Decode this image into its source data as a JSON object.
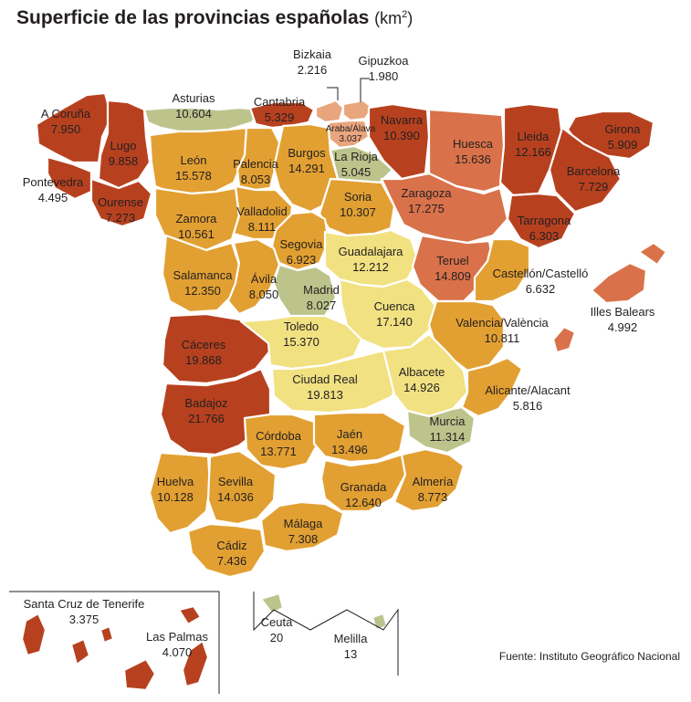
{
  "title": "Superficie de las provincias españolas",
  "unit_base": "(km",
  "unit_exp": "2",
  "unit_close": ")",
  "source": "Fuente: Instituto Geográfico Nacional",
  "colors": {
    "very_high": "#b7411f",
    "high": "#d9724a",
    "medium_high": "#e2a032",
    "peach": "#e9a57e",
    "medium": "#f1e181",
    "green": "#bcc48c"
  },
  "provinces": [
    {
      "id": "a-coruna",
      "name": "A Coruña",
      "value": "7.950",
      "color": "very_high"
    },
    {
      "id": "lugo",
      "name": "Lugo",
      "value": "9.858",
      "color": "very_high"
    },
    {
      "id": "pontevedra",
      "name": "Pontevedra",
      "value": "4.495",
      "color": "very_high"
    },
    {
      "id": "ourense",
      "name": "Ourense",
      "value": "7.273",
      "color": "very_high"
    },
    {
      "id": "asturias",
      "name": "Asturias",
      "value": "10.604",
      "color": "green"
    },
    {
      "id": "cantabria",
      "name": "Cantabria",
      "value": "5.329",
      "color": "very_high"
    },
    {
      "id": "bizkaia",
      "name": "Bizkaia",
      "value": "2.216",
      "color": "peach"
    },
    {
      "id": "gipuzkoa",
      "name": "Gipuzkoa",
      "value": "1.980",
      "color": "peach"
    },
    {
      "id": "araba",
      "name": "Araba/Álava",
      "value": "3.037",
      "color": "peach"
    },
    {
      "id": "navarra",
      "name": "Navarra",
      "value": "10.390",
      "color": "very_high"
    },
    {
      "id": "huesca",
      "name": "Huesca",
      "value": "15.636",
      "color": "high"
    },
    {
      "id": "lleida",
      "name": "Lleida",
      "value": "12.166",
      "color": "very_high"
    },
    {
      "id": "girona",
      "name": "Girona",
      "value": "5.909",
      "color": "very_high"
    },
    {
      "id": "barcelona",
      "name": "Barcelona",
      "value": "7.729",
      "color": "very_high"
    },
    {
      "id": "tarragona",
      "name": "Tarragona",
      "value": "6.303",
      "color": "very_high"
    },
    {
      "id": "leon",
      "name": "León",
      "value": "15.578",
      "color": "medium_high"
    },
    {
      "id": "palencia",
      "name": "Palencia",
      "value": "8.053",
      "color": "medium_high"
    },
    {
      "id": "burgos",
      "name": "Burgos",
      "value": "14.291",
      "color": "medium_high"
    },
    {
      "id": "la-rioja",
      "name": "La Rioja",
      "value": "5.045",
      "color": "green"
    },
    {
      "id": "zaragoza",
      "name": "Zaragoza",
      "value": "17.275",
      "color": "high"
    },
    {
      "id": "soria",
      "name": "Soria",
      "value": "10.307",
      "color": "medium_high"
    },
    {
      "id": "zamora",
      "name": "Zamora",
      "value": "10.561",
      "color": "medium_high"
    },
    {
      "id": "valladolid",
      "name": "Valladolid",
      "value": "8.111",
      "color": "medium_high"
    },
    {
      "id": "segovia",
      "name": "Segovia",
      "value": "6.923",
      "color": "medium_high"
    },
    {
      "id": "guadalajara",
      "name": "Guadalajara",
      "value": "12.212",
      "color": "medium"
    },
    {
      "id": "teruel",
      "name": "Teruel",
      "value": "14.809",
      "color": "high"
    },
    {
      "id": "castellon",
      "name": "Castellón/Castelló",
      "value": "6.632",
      "color": "medium_high"
    },
    {
      "id": "salamanca",
      "name": "Salamanca",
      "value": "12.350",
      "color": "medium_high"
    },
    {
      "id": "avila",
      "name": "Ávila",
      "value": "8.050",
      "color": "medium_high"
    },
    {
      "id": "madrid",
      "name": "Madrid",
      "value": "8.027",
      "color": "green"
    },
    {
      "id": "cuenca",
      "name": "Cuenca",
      "value": "17.140",
      "color": "medium"
    },
    {
      "id": "baleares",
      "name": "Illes Balears",
      "value": "4.992",
      "color": "high"
    },
    {
      "id": "caceres",
      "name": "Cáceres",
      "value": "19.868",
      "color": "very_high"
    },
    {
      "id": "toledo",
      "name": "Toledo",
      "value": "15.370",
      "color": "medium"
    },
    {
      "id": "valencia",
      "name": "Valencia/València",
      "value": "10.811",
      "color": "medium_high"
    },
    {
      "id": "ciudad-real",
      "name": "Ciudad Real",
      "value": "19.813",
      "color": "medium"
    },
    {
      "id": "albacete",
      "name": "Albacete",
      "value": "14.926",
      "color": "medium"
    },
    {
      "id": "alicante",
      "name": "Alicante/Alacant",
      "value": "5.816",
      "color": "medium_high"
    },
    {
      "id": "badajoz",
      "name": "Badajoz",
      "value": "21.766",
      "color": "very_high"
    },
    {
      "id": "murcia",
      "name": "Murcia",
      "value": "11.314",
      "color": "green"
    },
    {
      "id": "cordoba",
      "name": "Córdoba",
      "value": "13.771",
      "color": "medium_high"
    },
    {
      "id": "jaen",
      "name": "Jaén",
      "value": "13.496",
      "color": "medium_high"
    },
    {
      "id": "huelva",
      "name": "Huelva",
      "value": "10.128",
      "color": "medium_high"
    },
    {
      "id": "sevilla",
      "name": "Sevilla",
      "value": "14.036",
      "color": "medium_high"
    },
    {
      "id": "granada",
      "name": "Granada",
      "value": "12.640",
      "color": "medium_high"
    },
    {
      "id": "almeria",
      "name": "Almería",
      "value": "8.773",
      "color": "medium_high"
    },
    {
      "id": "malaga",
      "name": "Málaga",
      "value": "7.308",
      "color": "medium_high"
    },
    {
      "id": "cadiz",
      "name": "Cádiz",
      "value": "7.436",
      "color": "medium_high"
    },
    {
      "id": "santa-cruz",
      "name": "Santa Cruz de Tenerife",
      "value": "3.375",
      "color": "very_high"
    },
    {
      "id": "las-palmas",
      "name": "Las Palmas",
      "value": "4.070",
      "color": "very_high"
    },
    {
      "id": "ceuta",
      "name": "Ceuta",
      "value": "20",
      "color": "green"
    },
    {
      "id": "melilla",
      "name": "Melilla",
      "value": "13",
      "color": "green"
    }
  ]
}
